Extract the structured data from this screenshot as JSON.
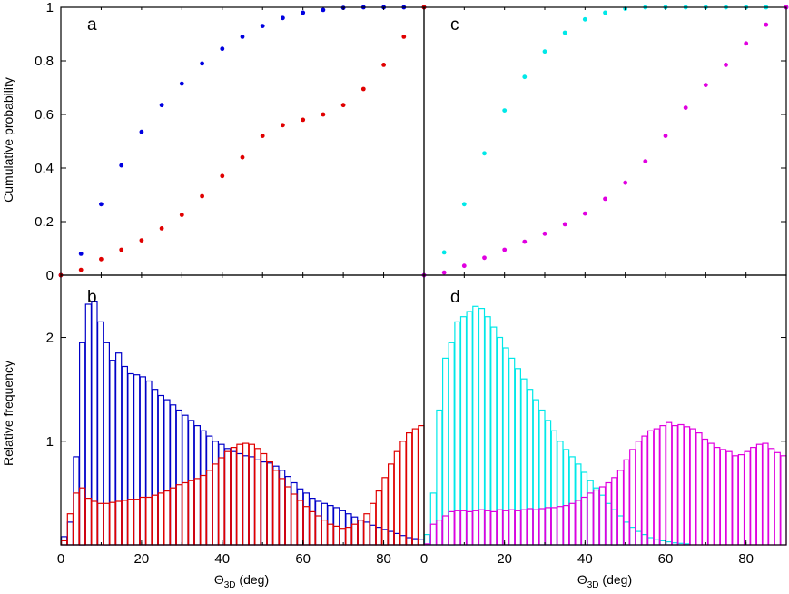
{
  "labels": {
    "ylabel_top": "Cumulative probability",
    "ylabel_bottom": "Relative frequency",
    "xlabel_left_prefix": "Θ",
    "xlabel_left_sub": "3D",
    "xlabel_left_suffix": " (deg)",
    "xlabel_right_prefix": "Θ",
    "xlabel_right_sub": "3D",
    "xlabel_right_suffix": " (deg)",
    "panel_a": "a",
    "panel_b": "b",
    "panel_c": "c",
    "panel_d": "d"
  },
  "chart_data": [
    {
      "panel": "a",
      "type": "scatter",
      "ylabel": "Cumulative probability",
      "xlim": [
        0,
        90
      ],
      "ylim": [
        0,
        1
      ],
      "yticks": [
        0,
        0.2,
        0.4,
        0.6,
        0.8,
        1
      ],
      "ytick_labels": [
        "0",
        "0.2",
        "0.4",
        "0.6",
        "0.8",
        "1"
      ],
      "series": [
        {
          "color": "#0000e0",
          "x": [
            0,
            5,
            10,
            15,
            20,
            25,
            30,
            35,
            40,
            45,
            50,
            55,
            60,
            65,
            70,
            75,
            80,
            85,
            90
          ],
          "values": [
            0,
            0.08,
            0.265,
            0.41,
            0.535,
            0.635,
            0.715,
            0.79,
            0.845,
            0.89,
            0.93,
            0.96,
            0.98,
            0.99,
            0.998,
            1,
            1,
            1,
            1
          ]
        },
        {
          "color": "#e00000",
          "x": [
            0,
            5,
            10,
            15,
            20,
            25,
            30,
            35,
            40,
            45,
            50,
            55,
            60,
            65,
            70,
            75,
            80,
            85,
            90
          ],
          "values": [
            0,
            0.02,
            0.06,
            0.095,
            0.13,
            0.175,
            0.225,
            0.295,
            0.37,
            0.44,
            0.52,
            0.56,
            0.58,
            0.6,
            0.635,
            0.695,
            0.785,
            0.89,
            1
          ]
        }
      ]
    },
    {
      "panel": "c",
      "type": "scatter",
      "xlim": [
        0,
        90
      ],
      "ylim": [
        0,
        1
      ],
      "series": [
        {
          "color": "#00e8e8",
          "x": [
            0,
            5,
            10,
            15,
            20,
            25,
            30,
            35,
            40,
            45,
            50,
            55,
            60,
            65,
            70,
            75,
            80,
            85,
            90
          ],
          "values": [
            0,
            0.085,
            0.265,
            0.455,
            0.615,
            0.74,
            0.835,
            0.905,
            0.955,
            0.98,
            0.995,
            1,
            1,
            1,
            1,
            1,
            1,
            1,
            1
          ]
        },
        {
          "color": "#e000e0",
          "x": [
            0,
            5,
            10,
            15,
            20,
            25,
            30,
            35,
            40,
            45,
            50,
            55,
            60,
            65,
            70,
            75,
            80,
            85,
            90
          ],
          "values": [
            0,
            0.01,
            0.035,
            0.065,
            0.095,
            0.125,
            0.155,
            0.19,
            0.23,
            0.285,
            0.345,
            0.425,
            0.52,
            0.625,
            0.71,
            0.785,
            0.865,
            0.935,
            1
          ]
        }
      ]
    },
    {
      "panel": "b",
      "type": "bar",
      "ylabel": "Relative frequency",
      "xlabel": "Θ3D (deg)",
      "xlim": [
        0,
        90
      ],
      "ylim": [
        0,
        2.6
      ],
      "bin_width": 1.5,
      "xticks": [
        0,
        20,
        40,
        60,
        80
      ],
      "xtick_labels": [
        "0",
        "20",
        "40",
        "60",
        "80"
      ],
      "yticks": [
        1,
        2
      ],
      "ytick_labels": [
        "1",
        "2"
      ],
      "series": [
        {
          "color": "#0000c8",
          "values": [
            0.08,
            0.22,
            0.85,
            1.95,
            2.32,
            2.35,
            2.15,
            1.95,
            1.78,
            1.85,
            1.72,
            1.65,
            1.64,
            1.62,
            1.58,
            1.5,
            1.44,
            1.4,
            1.35,
            1.3,
            1.25,
            1.2,
            1.15,
            1.1,
            1.05,
            1.0,
            0.97,
            0.93,
            0.9,
            0.88,
            0.86,
            0.85,
            0.82,
            0.8,
            0.79,
            0.76,
            0.72,
            0.66,
            0.6,
            0.54,
            0.5,
            0.45,
            0.42,
            0.4,
            0.38,
            0.36,
            0.33,
            0.3,
            0.27,
            0.24,
            0.22,
            0.19,
            0.17,
            0.15,
            0.13,
            0.11,
            0.09,
            0.07,
            0.06,
            0.05
          ]
        },
        {
          "color": "#e00000",
          "values": [
            0.04,
            0.3,
            0.5,
            0.55,
            0.45,
            0.42,
            0.4,
            0.4,
            0.41,
            0.42,
            0.43,
            0.44,
            0.44,
            0.46,
            0.46,
            0.48,
            0.5,
            0.52,
            0.55,
            0.58,
            0.6,
            0.62,
            0.64,
            0.67,
            0.72,
            0.78,
            0.84,
            0.9,
            0.94,
            0.97,
            0.98,
            0.97,
            0.93,
            0.88,
            0.8,
            0.72,
            0.64,
            0.56,
            0.49,
            0.43,
            0.37,
            0.32,
            0.28,
            0.24,
            0.2,
            0.18,
            0.16,
            0.17,
            0.2,
            0.24,
            0.3,
            0.4,
            0.52,
            0.65,
            0.78,
            0.9,
            1.0,
            1.08,
            1.12,
            1.15,
            1.17,
            1.18,
            1.2,
            1.2
          ]
        }
      ]
    },
    {
      "panel": "d",
      "type": "bar",
      "xlabel": "Θ3D (deg)",
      "xlim": [
        0,
        90
      ],
      "ylim": [
        0,
        2.6
      ],
      "bin_width": 1.5,
      "xticks": [
        0,
        20,
        40,
        60,
        80
      ],
      "xtick_labels": [
        "0",
        "20",
        "40",
        "60",
        "80"
      ],
      "series": [
        {
          "color": "#00e8e8",
          "values": [
            0.1,
            0.5,
            1.3,
            1.8,
            1.95,
            2.15,
            2.2,
            2.25,
            2.3,
            2.28,
            2.2,
            2.1,
            2.0,
            1.9,
            1.8,
            1.7,
            1.6,
            1.5,
            1.4,
            1.3,
            1.2,
            1.1,
            1.0,
            0.92,
            0.85,
            0.78,
            0.7,
            0.62,
            0.55,
            0.48,
            0.4,
            0.34,
            0.28,
            0.22,
            0.17,
            0.13,
            0.1,
            0.07,
            0.05,
            0.04,
            0.03,
            0.02,
            0.015,
            0.01
          ]
        },
        {
          "color": "#e000e0",
          "values": [
            0.01,
            0.2,
            0.24,
            0.28,
            0.32,
            0.33,
            0.33,
            0.32,
            0.33,
            0.34,
            0.33,
            0.32,
            0.34,
            0.33,
            0.34,
            0.33,
            0.34,
            0.35,
            0.34,
            0.35,
            0.36,
            0.36,
            0.37,
            0.38,
            0.4,
            0.43,
            0.46,
            0.5,
            0.53,
            0.56,
            0.6,
            0.65,
            0.72,
            0.82,
            0.92,
            1.0,
            1.05,
            1.1,
            1.12,
            1.15,
            1.18,
            1.15,
            1.16,
            1.14,
            1.12,
            1.08,
            1.02,
            0.98,
            0.94,
            0.92,
            0.9,
            0.86,
            0.87,
            0.9,
            0.94,
            0.97,
            0.98,
            0.93,
            0.89,
            0.86,
            0.85,
            0.83,
            0.79,
            0.74,
            0.72,
            0.7,
            0.68,
            0.67,
            0.65
          ]
        }
      ]
    }
  ]
}
